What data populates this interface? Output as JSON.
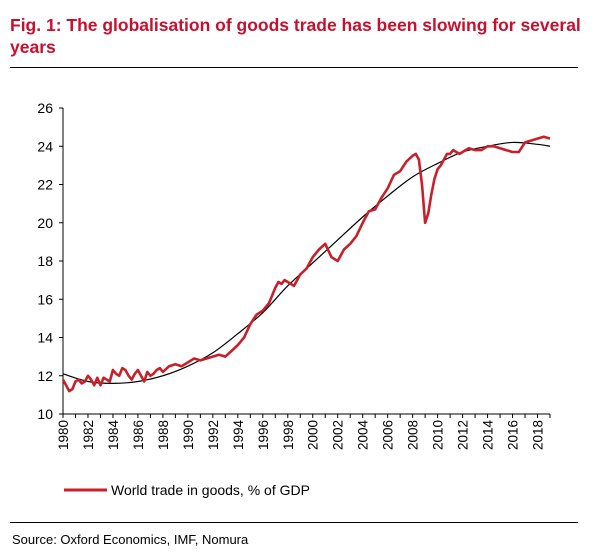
{
  "title": "Fig. 1: The globalisation of goods trade has been slowing for several years",
  "source": "Source: Oxford Economics, IMF, Nomura",
  "chart_data": {
    "type": "line",
    "title": "Fig. 1: The globalisation of goods trade has been slowing for several years",
    "xlabel": "",
    "ylabel": "",
    "ylim": [
      10,
      26
    ],
    "xlim": [
      1980,
      2019
    ],
    "yticks": [
      10,
      12,
      14,
      16,
      18,
      20,
      22,
      24,
      26
    ],
    "xticks": [
      "1980",
      "1982",
      "1984",
      "1986",
      "1988",
      "1990",
      "1992",
      "1994",
      "1996",
      "1998",
      "2000",
      "2002",
      "2004",
      "2006",
      "2008",
      "2010",
      "2012",
      "2014",
      "2016",
      "2018"
    ],
    "grid": false,
    "legend_position": "bottom-left",
    "colors": {
      "series": "#c8202a",
      "trend": "#000000",
      "title": "#c8102e"
    },
    "series": [
      {
        "name": "World trade in goods, % of GDP",
        "x": [
          1980,
          1980.25,
          1980.5,
          1980.75,
          1981,
          1981.25,
          1981.5,
          1981.75,
          1982,
          1982.25,
          1982.5,
          1982.75,
          1983,
          1983.25,
          1983.5,
          1983.75,
          1984,
          1984.25,
          1984.5,
          1984.75,
          1985,
          1985.25,
          1985.5,
          1985.75,
          1986,
          1986.25,
          1986.5,
          1986.75,
          1987,
          1987.25,
          1987.5,
          1987.75,
          1988,
          1988.5,
          1989,
          1989.5,
          1990,
          1990.5,
          1991,
          1991.5,
          1992,
          1992.5,
          1993,
          1993.5,
          1994,
          1994.5,
          1995,
          1995.5,
          1996,
          1996.5,
          1997,
          1997.25,
          1997.5,
          1997.75,
          1998,
          1998.5,
          1999,
          1999.5,
          2000,
          2000.5,
          2001,
          2001.5,
          2002,
          2002.5,
          2003,
          2003.5,
          2004,
          2004.5,
          2005,
          2005.5,
          2006,
          2006.5,
          2007,
          2007.5,
          2008,
          2008.25,
          2008.5,
          2008.75,
          2009,
          2009.25,
          2009.5,
          2009.75,
          2010,
          2010.25,
          2010.5,
          2010.75,
          2011,
          2011.25,
          2011.5,
          2011.75,
          2012,
          2012.5,
          2013,
          2013.5,
          2014,
          2014.5,
          2015,
          2015.5,
          2016,
          2016.5,
          2017,
          2017.5,
          2018,
          2018.5,
          2019
        ],
        "values": [
          11.8,
          11.5,
          11.2,
          11.3,
          11.7,
          11.8,
          11.6,
          11.7,
          12.0,
          11.8,
          11.5,
          11.9,
          11.5,
          11.9,
          11.8,
          11.7,
          12.3,
          12.1,
          12.0,
          12.4,
          12.3,
          12.0,
          11.8,
          12.1,
          12.3,
          12.0,
          11.7,
          12.2,
          12.0,
          12.1,
          12.3,
          12.4,
          12.2,
          12.5,
          12.6,
          12.5,
          12.7,
          12.9,
          12.8,
          12.9,
          13.0,
          13.1,
          13.0,
          13.3,
          13.6,
          14.0,
          14.7,
          15.2,
          15.4,
          15.8,
          16.6,
          16.9,
          16.8,
          17.0,
          16.9,
          16.7,
          17.3,
          17.6,
          18.2,
          18.6,
          18.9,
          18.2,
          18.0,
          18.6,
          18.9,
          19.3,
          20.0,
          20.6,
          20.7,
          21.3,
          21.8,
          22.5,
          22.7,
          23.2,
          23.5,
          23.6,
          23.3,
          22.0,
          20.0,
          20.5,
          21.5,
          22.3,
          22.8,
          23.0,
          23.3,
          23.6,
          23.6,
          23.8,
          23.7,
          23.6,
          23.7,
          23.9,
          23.8,
          23.8,
          24.0,
          24.0,
          23.9,
          23.8,
          23.7,
          23.7,
          24.2,
          24.3,
          24.4,
          24.5,
          24.4
        ]
      }
    ],
    "trend": {
      "x": [
        1980,
        1982,
        1984,
        1986,
        1988,
        1990,
        1992,
        1994,
        1996,
        1998,
        2000,
        2002,
        2004,
        2006,
        2008,
        2010,
        2012,
        2014,
        2016,
        2018,
        2019
      ],
      "values": [
        12.1,
        11.7,
        11.6,
        11.7,
        12.0,
        12.5,
        13.2,
        14.2,
        15.3,
        16.7,
        17.9,
        19.1,
        20.3,
        21.4,
        22.4,
        23.1,
        23.7,
        24.0,
        24.2,
        24.1,
        24.0
      ]
    }
  }
}
